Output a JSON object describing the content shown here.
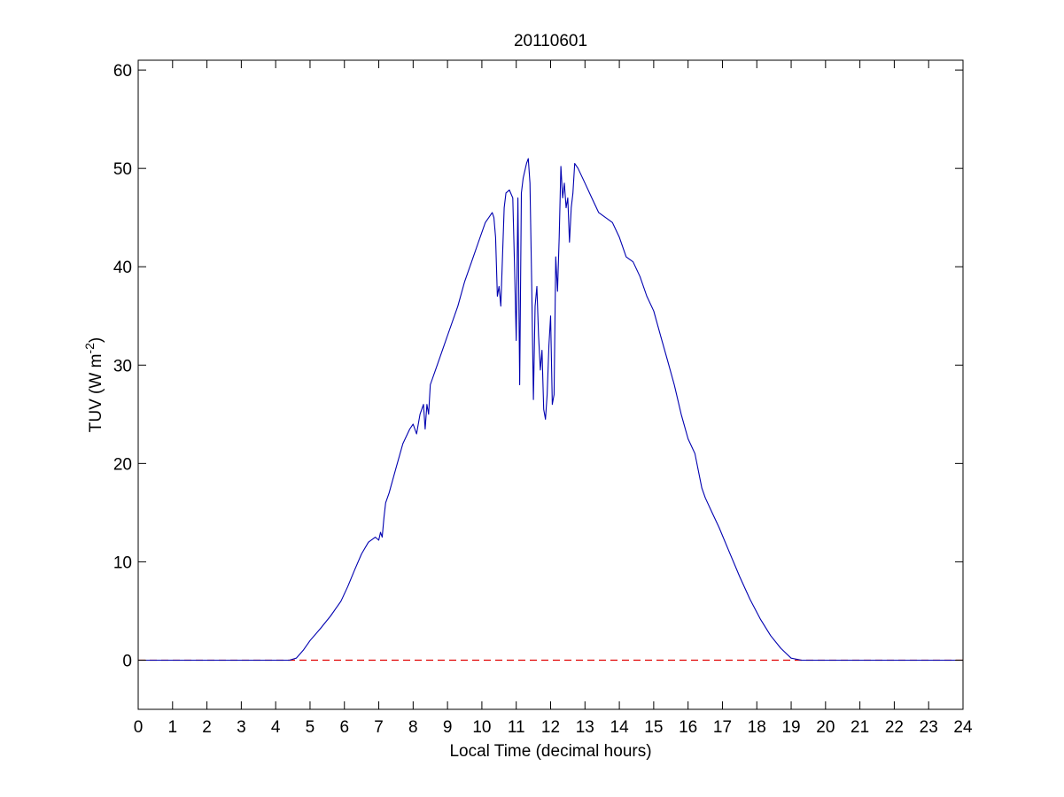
{
  "chart_data": {
    "type": "line",
    "title": "20110601",
    "xlabel": "Local Time (decimal hours)",
    "ylabel": {
      "prefix": "TUV (W m",
      "superscript": "-2",
      "suffix": ")"
    },
    "xlim": [
      0,
      24
    ],
    "ylim": [
      -5,
      61
    ],
    "xticks": [
      "0",
      "1",
      "2",
      "3",
      "4",
      "5",
      "6",
      "7",
      "8",
      "9",
      "10",
      "11",
      "12",
      "13",
      "14",
      "15",
      "16",
      "17",
      "18",
      "19",
      "20",
      "21",
      "22",
      "23",
      "24"
    ],
    "yticks": [
      "0",
      "10",
      "20",
      "30",
      "40",
      "50",
      "60"
    ],
    "grid": false,
    "colors": {
      "measured": "#0000b0",
      "zero_line": "#e00000"
    },
    "series": [
      {
        "style": "solid",
        "x": [
          0,
          4.4,
          4.6,
          4.8,
          5.0,
          5.3,
          5.6,
          5.9,
          6.1,
          6.3,
          6.5,
          6.7,
          6.9,
          7.0,
          7.05,
          7.1,
          7.15,
          7.2,
          7.3,
          7.5,
          7.7,
          7.9,
          8.0,
          8.1,
          8.2,
          8.3,
          8.35,
          8.4,
          8.45,
          8.5,
          8.7,
          9.0,
          9.3,
          9.5,
          9.7,
          9.9,
          10.1,
          10.3,
          10.35,
          10.4,
          10.45,
          10.5,
          10.55,
          10.6,
          10.65,
          10.7,
          10.8,
          10.9,
          10.95,
          11.0,
          11.05,
          11.1,
          11.15,
          11.2,
          11.3,
          11.35,
          11.4,
          11.45,
          11.5,
          11.55,
          11.6,
          11.65,
          11.7,
          11.75,
          11.8,
          11.85,
          11.9,
          11.95,
          12.0,
          12.05,
          12.1,
          12.15,
          12.2,
          12.25,
          12.3,
          12.35,
          12.4,
          12.45,
          12.5,
          12.55,
          12.6,
          12.65,
          12.7,
          12.8,
          13.0,
          13.2,
          13.4,
          13.6,
          13.8,
          14.0,
          14.2,
          14.4,
          14.6,
          14.8,
          15.0,
          15.2,
          15.4,
          15.6,
          15.8,
          16.0,
          16.2,
          16.4,
          16.5,
          16.7,
          16.9,
          17.2,
          17.5,
          17.8,
          18.1,
          18.4,
          18.7,
          19.0,
          19.3,
          19.6,
          19.8,
          20.0,
          24.0
        ],
        "y": [
          0,
          0,
          0.2,
          1.0,
          2.0,
          3.2,
          4.5,
          6.0,
          7.5,
          9.2,
          10.8,
          12.0,
          12.5,
          12.2,
          13.0,
          12.5,
          14.5,
          16.0,
          17.0,
          19.5,
          22.0,
          23.5,
          24.0,
          23.0,
          25.0,
          26.0,
          23.5,
          26.0,
          25.0,
          28.0,
          30.0,
          33.0,
          36.0,
          38.5,
          40.5,
          42.5,
          44.5,
          45.5,
          45.0,
          43.0,
          37.0,
          38.0,
          36.0,
          41.0,
          46.0,
          47.5,
          47.8,
          47.0,
          40.0,
          32.5,
          47.0,
          28.0,
          47.5,
          49.0,
          50.5,
          51.0,
          48.5,
          38.0,
          26.5,
          36.0,
          38.0,
          33.0,
          29.5,
          31.5,
          25.5,
          24.5,
          27.0,
          32.0,
          35.0,
          26.0,
          27.0,
          41.0,
          37.5,
          43.0,
          50.2,
          47.0,
          48.5,
          46.0,
          47.0,
          42.5,
          46.0,
          47.5,
          50.5,
          50.0,
          48.5,
          47.0,
          45.5,
          45.0,
          44.5,
          43.0,
          41.0,
          40.5,
          39.0,
          37.0,
          35.5,
          33.0,
          30.5,
          28.0,
          25.0,
          22.5,
          21.0,
          17.5,
          16.5,
          15.0,
          13.5,
          11.0,
          8.5,
          6.2,
          4.2,
          2.5,
          1.2,
          0.2,
          0,
          0,
          0,
          0,
          0
        ]
      },
      {
        "style": "dashed",
        "x": [
          0,
          24
        ],
        "y": [
          0,
          0
        ]
      }
    ]
  }
}
